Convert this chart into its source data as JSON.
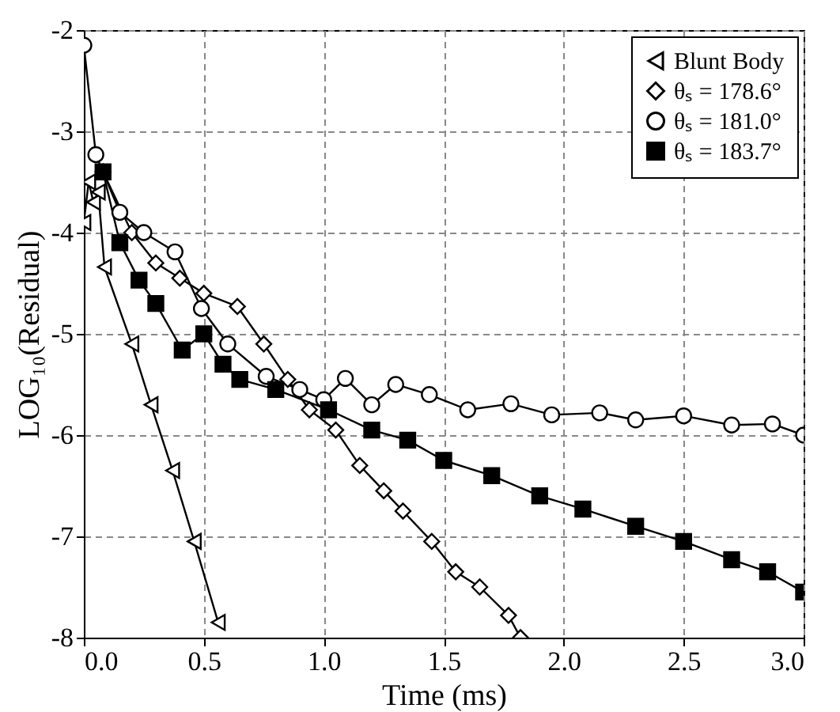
{
  "chart_data": {
    "type": "line",
    "xlabel": "Time (ms)",
    "ylabel": "LOG₁₀(Residual)",
    "xlim": [
      0,
      3
    ],
    "xticks": [
      {
        "value": 0,
        "label": "0.0"
      },
      {
        "value": 0.5,
        "label": "0.5"
      },
      {
        "value": 1,
        "label": "1.0"
      },
      {
        "value": 1.5,
        "label": "1.5"
      },
      {
        "value": 2,
        "label": "2.0"
      },
      {
        "value": 2.5,
        "label": "2.5"
      },
      {
        "value": 3,
        "label": "3.0"
      }
    ],
    "ylim": [
      -8,
      -2
    ],
    "yticks": [
      -8,
      -7,
      -6,
      -5,
      -4,
      -3,
      -2
    ],
    "grid": true,
    "legend": "top right",
    "series": [
      {
        "name": "Blunt Body",
        "color": "#000000",
        "marker": "triangle",
        "x": [
          0,
          0.02,
          0.04,
          0.06,
          0.086,
          0.2,
          0.28,
          0.37,
          0.46,
          0.56
        ],
        "values": [
          -3.9,
          -3.5,
          -3.7,
          -3.6,
          -4.34,
          -5.1,
          -5.7,
          -6.35,
          -7.05,
          -7.85
        ]
      },
      {
        "name": "θₛ = 178.6°",
        "color": "#000000",
        "marker": "diamond",
        "x": [
          0.08,
          0.2,
          0.3,
          0.4,
          0.5,
          0.64,
          0.75,
          0.85,
          0.94,
          1.05,
          1.15,
          1.25,
          1.33,
          1.45,
          1.55,
          1.65,
          1.77,
          1.82
        ],
        "values": [
          -3.4,
          -4.0,
          -4.3,
          -4.45,
          -4.6,
          -4.73,
          -5.1,
          -5.45,
          -5.75,
          -5.95,
          -6.3,
          -6.55,
          -6.75,
          -7.05,
          -7.35,
          -7.5,
          -7.78,
          -8.0
        ]
      },
      {
        "name": "θₛ = 181.0°",
        "color": "#000000",
        "marker": "circle",
        "x": [
          0,
          0.05,
          0.15,
          0.25,
          0.38,
          0.49,
          0.6,
          0.76,
          0.9,
          1.0,
          1.09,
          1.2,
          1.3,
          1.44,
          1.6,
          1.78,
          1.95,
          2.15,
          2.3,
          2.5,
          2.7,
          2.87,
          3.0
        ],
        "values": [
          -2.15,
          -3.23,
          -3.8,
          -4.0,
          -4.19,
          -4.75,
          -5.1,
          -5.42,
          -5.55,
          -5.65,
          -5.44,
          -5.7,
          -5.5,
          -5.6,
          -5.75,
          -5.69,
          -5.8,
          -5.78,
          -5.85,
          -5.81,
          -5.9,
          -5.89,
          -6.0
        ]
      },
      {
        "name": "θₛ = 183.7°",
        "color": "#000000",
        "marker": "square",
        "x": [
          0.08,
          0.15,
          0.23,
          0.3,
          0.41,
          0.5,
          0.58,
          0.65,
          0.8,
          1.02,
          1.2,
          1.35,
          1.5,
          1.7,
          1.9,
          2.08,
          2.3,
          2.5,
          2.7,
          2.85,
          3.0
        ],
        "values": [
          -3.4,
          -4.1,
          -4.47,
          -4.7,
          -5.16,
          -5.0,
          -5.3,
          -5.45,
          -5.55,
          -5.75,
          -5.95,
          -6.05,
          -6.25,
          -6.4,
          -6.6,
          -6.73,
          -6.9,
          -7.05,
          -7.23,
          -7.35,
          -7.55
        ]
      }
    ]
  }
}
